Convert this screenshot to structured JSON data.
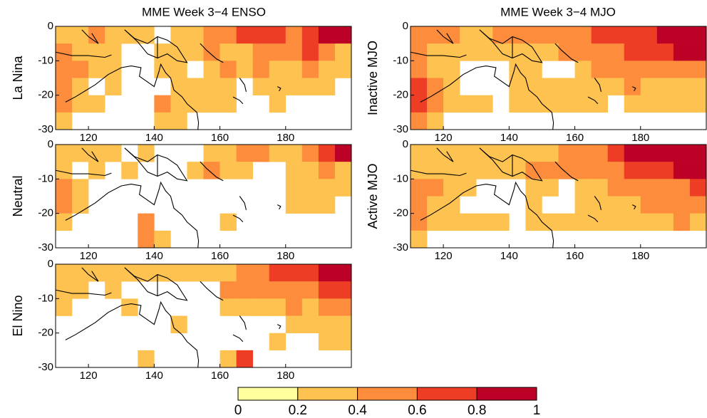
{
  "chart_data": {
    "type": "heatmap",
    "column_titles": [
      "MME Week 3−4 ENSO",
      "MME Week 3−4 MJO"
    ],
    "xlim": [
      110,
      200
    ],
    "ylim": [
      -30,
      0
    ],
    "xticks": [
      120,
      140,
      160,
      180
    ],
    "yticks": [
      0,
      -10,
      -20,
      -30
    ],
    "colorbar": {
      "bounds": [
        0,
        0.2,
        0.4,
        0.6,
        0.8,
        1
      ],
      "colors": [
        "#ffff9e",
        "#fdc24f",
        "#fd8d3c",
        "#ee3d25",
        "#bd0026"
      ]
    },
    "panels": [
      {
        "label": "La Nina",
        "values": [
          [
            0.3,
            0.3,
            0.5,
            0.3,
            0.3,
            0.3,
            null,
            0.3,
            0.3,
            0.5,
            0.5,
            0.7,
            0.7,
            0.7,
            0.5,
            0.7,
            0.9,
            0.9
          ],
          [
            0.5,
            0.3,
            0.3,
            0.3,
            null,
            null,
            0.3,
            0.3,
            0.3,
            0.5,
            0.3,
            0.3,
            0.5,
            0.5,
            0.5,
            0.7,
            0.5,
            0.3
          ],
          [
            0.5,
            0.5,
            0.3,
            0.3,
            null,
            null,
            0.3,
            0.3,
            null,
            0.3,
            0.5,
            0.3,
            0.5,
            0.3,
            0.3,
            0.5,
            0.3,
            0.3
          ],
          [
            0.5,
            0.3,
            null,
            0.3,
            null,
            null,
            null,
            0.3,
            0.3,
            0.3,
            0.3,
            null,
            0.3,
            0.3,
            0.3,
            0.3,
            0.3,
            null
          ],
          [
            0.5,
            0.3,
            0.3,
            null,
            null,
            null,
            0.5,
            0.3,
            0.3,
            0.3,
            0.3,
            null,
            null,
            0.3,
            null,
            null,
            null,
            null
          ],
          [
            0.3,
            null,
            null,
            null,
            null,
            null,
            0.3,
            0.3,
            null,
            null,
            null,
            null,
            null,
            null,
            null,
            null,
            null,
            null
          ]
        ]
      },
      {
        "label": "Neutral",
        "values": [
          [
            0.3,
            0.3,
            0.3,
            0.3,
            null,
            0.3,
            null,
            null,
            null,
            0.3,
            0.3,
            0.5,
            0.5,
            0.3,
            0.3,
            0.5,
            0.7,
            0.9
          ],
          [
            0.3,
            null,
            0.3,
            null,
            0.3,
            null,
            null,
            null,
            0.3,
            0.5,
            0.3,
            0.3,
            null,
            null,
            0.3,
            0.3,
            0.5,
            0.3
          ],
          [
            0.5,
            0.3,
            null,
            null,
            null,
            null,
            null,
            null,
            null,
            null,
            null,
            null,
            null,
            null,
            0.3,
            0.3,
            0.3,
            0.3
          ],
          [
            0.5,
            0.3,
            null,
            null,
            null,
            null,
            null,
            null,
            null,
            null,
            null,
            null,
            null,
            null,
            0.3,
            0.3,
            0.3,
            null
          ],
          [
            0.3,
            null,
            null,
            null,
            null,
            0.5,
            null,
            null,
            null,
            null,
            0.3,
            null,
            null,
            null,
            null,
            null,
            null,
            null
          ],
          [
            null,
            null,
            null,
            null,
            null,
            0.5,
            0.3,
            null,
            null,
            null,
            null,
            null,
            null,
            null,
            null,
            null,
            null,
            null
          ]
        ]
      },
      {
        "label": "El Nino",
        "values": [
          [
            0.3,
            0.3,
            0.3,
            0.3,
            0.3,
            0.3,
            0.3,
            0.3,
            0.3,
            0.3,
            0.3,
            0.5,
            0.5,
            0.7,
            0.7,
            0.7,
            0.9,
            0.9
          ],
          [
            0.3,
            0.3,
            null,
            0.3,
            null,
            null,
            null,
            null,
            null,
            null,
            0.5,
            0.5,
            0.5,
            0.5,
            0.5,
            0.5,
            0.7,
            0.7
          ],
          [
            0.3,
            null,
            null,
            null,
            0.3,
            null,
            null,
            null,
            null,
            null,
            0.3,
            0.3,
            0.3,
            0.3,
            0.5,
            0.3,
            0.5,
            0.5
          ],
          [
            null,
            null,
            null,
            null,
            null,
            null,
            null,
            0.3,
            null,
            null,
            null,
            null,
            null,
            null,
            0.3,
            0.3,
            0.3,
            0.3
          ],
          [
            null,
            null,
            null,
            null,
            null,
            null,
            null,
            null,
            null,
            null,
            null,
            null,
            null,
            0.3,
            null,
            null,
            0.3,
            0.3
          ],
          [
            null,
            null,
            null,
            null,
            null,
            0.3,
            null,
            null,
            null,
            null,
            0.3,
            0.7,
            null,
            null,
            null,
            null,
            null,
            null
          ]
        ]
      },
      {
        "label": "Inactive MJO",
        "values": [
          [
            0.5,
            0.5,
            0.5,
            0.3,
            0.3,
            0.5,
            0.5,
            0.5,
            0.5,
            0.5,
            0.5,
            0.7,
            0.7,
            0.7,
            0.7,
            0.9,
            0.9,
            0.9
          ],
          [
            0.5,
            0.3,
            0.3,
            0.3,
            0.3,
            0.3,
            0.3,
            0.3,
            0.3,
            0.5,
            0.5,
            0.5,
            0.5,
            0.7,
            0.7,
            0.7,
            0.9,
            0.9
          ],
          [
            0.5,
            0.3,
            0.3,
            null,
            null,
            null,
            0.3,
            0.3,
            null,
            null,
            0.3,
            0.5,
            0.5,
            0.5,
            0.5,
            0.5,
            0.5,
            0.5
          ],
          [
            0.7,
            0.5,
            0.3,
            null,
            null,
            null,
            0.3,
            0.3,
            0.3,
            0.3,
            0.3,
            0.3,
            0.3,
            0.5,
            0.3,
            0.3,
            0.3,
            0.3
          ],
          [
            0.7,
            0.5,
            0.3,
            0.3,
            0.3,
            null,
            0.3,
            0.3,
            0.3,
            0.3,
            0.3,
            0.3,
            null,
            0.3,
            0.3,
            0.3,
            0.3,
            0.3
          ],
          [
            0.5,
            0.3,
            null,
            null,
            null,
            null,
            null,
            null,
            null,
            null,
            null,
            null,
            null,
            null,
            null,
            null,
            null,
            null
          ]
        ]
      },
      {
        "label": "Active MJO",
        "values": [
          [
            0.3,
            0.3,
            0.3,
            0.3,
            0.3,
            0.3,
            0.3,
            0.3,
            0.3,
            0.5,
            0.5,
            0.5,
            0.7,
            0.9,
            0.9,
            0.9,
            0.9,
            0.9
          ],
          [
            0.3,
            0.3,
            0.3,
            0.3,
            0.3,
            0.3,
            0.3,
            0.5,
            0.5,
            0.5,
            0.5,
            0.5,
            0.5,
            0.7,
            0.7,
            0.7,
            0.9,
            0.9
          ],
          [
            0.5,
            0.5,
            0.3,
            0.3,
            null,
            null,
            null,
            0.3,
            0.3,
            null,
            0.3,
            0.3,
            0.5,
            0.5,
            0.5,
            0.5,
            0.5,
            0.7
          ],
          [
            0.5,
            0.3,
            0.3,
            null,
            null,
            null,
            null,
            0.3,
            null,
            null,
            0.3,
            0.3,
            0.3,
            0.3,
            0.5,
            0.5,
            0.5,
            0.5
          ],
          [
            0.5,
            0.3,
            0.3,
            0.3,
            0.3,
            0.3,
            null,
            0.3,
            0.3,
            0.3,
            0.3,
            0.3,
            0.3,
            0.3,
            0.3,
            0.3,
            0.5,
            0.3
          ],
          [
            0.3,
            null,
            null,
            null,
            null,
            null,
            null,
            null,
            null,
            null,
            null,
            null,
            null,
            null,
            null,
            null,
            null,
            null
          ]
        ]
      }
    ]
  }
}
